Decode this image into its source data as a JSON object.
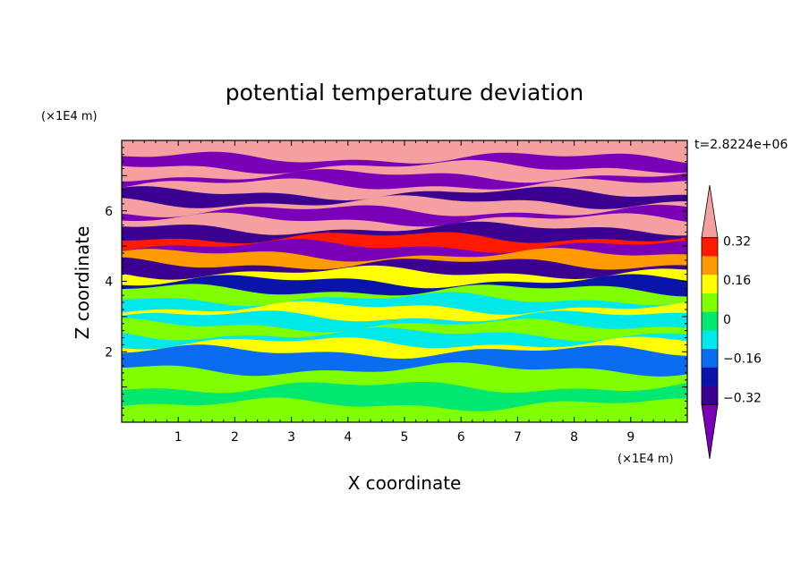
{
  "chart_data": {
    "type": "heatmap",
    "title": "potential temperature deviation",
    "xlabel": "X coordinate",
    "ylabel": "Z coordinate",
    "x_unit": "(×1E4 m)",
    "y_unit": "(×1E4 m)",
    "time_label": "t=2.8224e+06",
    "xlim": [
      0,
      10
    ],
    "ylim": [
      0,
      8
    ],
    "x_ticks": [
      1,
      2,
      3,
      4,
      5,
      6,
      7,
      8,
      9
    ],
    "y_ticks": [
      2,
      4,
      6
    ],
    "colorbar": {
      "levels": [
        -0.4,
        -0.32,
        -0.24,
        -0.16,
        -0.08,
        0,
        0.08,
        0.16,
        0.24,
        0.32,
        0.4
      ],
      "tick_values": [
        0.32,
        0.16,
        0,
        -0.16,
        -0.32
      ],
      "tick_labels": [
        "0.32",
        "0.16",
        "0",
        "−0.16",
        "−0.32"
      ],
      "colors": [
        "#7a00b8",
        "#3a0090",
        "#0a14a8",
        "#0a6cf0",
        "#00e8e8",
        "#00e870",
        "#80ff00",
        "#ffff00",
        "#ff9a00",
        "#ff1a00",
        "#f4a0a0"
      ],
      "extend": "both"
    },
    "bands": [
      {
        "z": 7.75,
        "level": 0.4
      },
      {
        "z": 7.5,
        "level": -0.4
      },
      {
        "z": 7.25,
        "level": 0.4
      },
      {
        "z": 7.0,
        "level": -0.4
      },
      {
        "z": 6.75,
        "level": 0.4
      },
      {
        "z": 6.5,
        "level": -0.32
      },
      {
        "z": 6.25,
        "level": 0.4
      },
      {
        "z": 6.0,
        "level": -0.4
      },
      {
        "z": 5.75,
        "level": 0.4
      },
      {
        "z": 5.5,
        "level": -0.32
      },
      {
        "z": 5.25,
        "level": 0.32
      },
      {
        "z": 5.0,
        "level": -0.4
      },
      {
        "z": 4.75,
        "level": 0.24
      },
      {
        "z": 4.5,
        "level": -0.32
      },
      {
        "z": 4.25,
        "level": 0.16
      },
      {
        "z": 4.0,
        "level": -0.24
      },
      {
        "z": 3.75,
        "level": 0.08
      },
      {
        "z": 3.5,
        "level": -0.08
      },
      {
        "z": 3.25,
        "level": 0.16
      },
      {
        "z": 3.0,
        "level": -0.08
      },
      {
        "z": 2.75,
        "level": 0.08
      },
      {
        "z": 2.5,
        "level": -0.08
      },
      {
        "z": 2.25,
        "level": 0.16
      },
      {
        "z": 2.0,
        "level": -0.16
      },
      {
        "z": 1.5,
        "level": 0.08
      },
      {
        "z": 1.0,
        "level": 0.0
      },
      {
        "z": 0.5,
        "level": 0.08
      }
    ]
  }
}
